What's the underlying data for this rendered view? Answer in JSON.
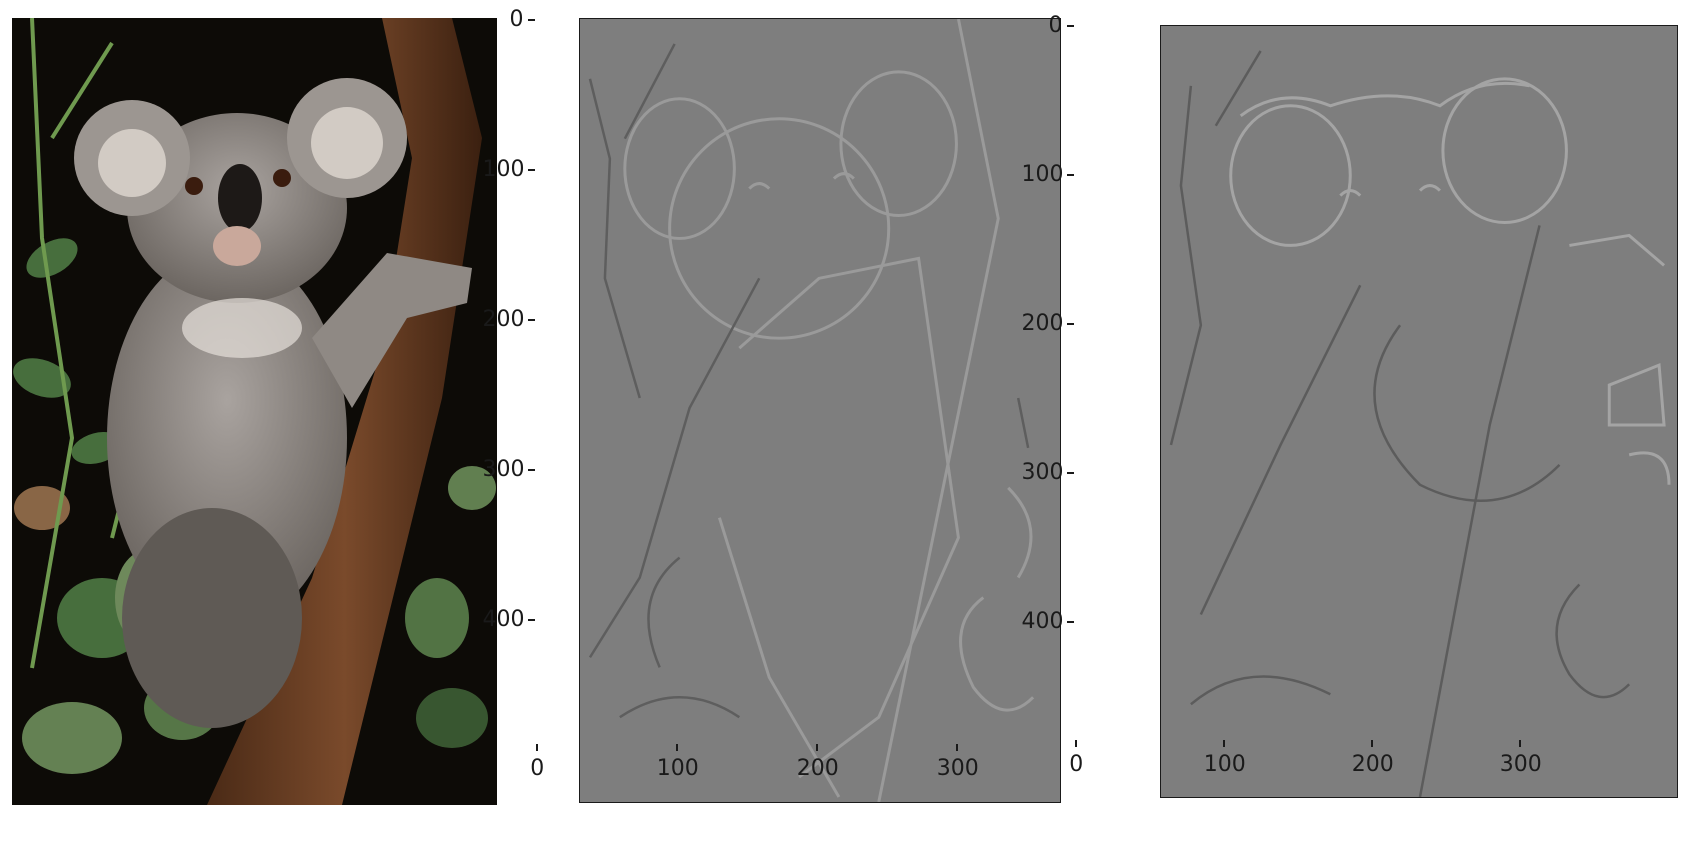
{
  "panels": [
    {
      "id": "original",
      "kind": "photo",
      "subject": "koala in tree"
    },
    {
      "id": "edges_x",
      "kind": "axes",
      "x_ticks": [
        "0",
        "100",
        "200",
        "300"
      ],
      "y_ticks": [
        "0",
        "100",
        "200",
        "300",
        "400"
      ]
    },
    {
      "id": "edges_y",
      "kind": "axes",
      "x_ticks": [
        "0",
        "100",
        "200",
        "300"
      ],
      "y_ticks": [
        "0",
        "100",
        "200",
        "300",
        "400"
      ]
    }
  ],
  "colors": {
    "background": "#ffffff",
    "filter_gray": "#7e7e7e",
    "axis": "#1a1a1a"
  }
}
